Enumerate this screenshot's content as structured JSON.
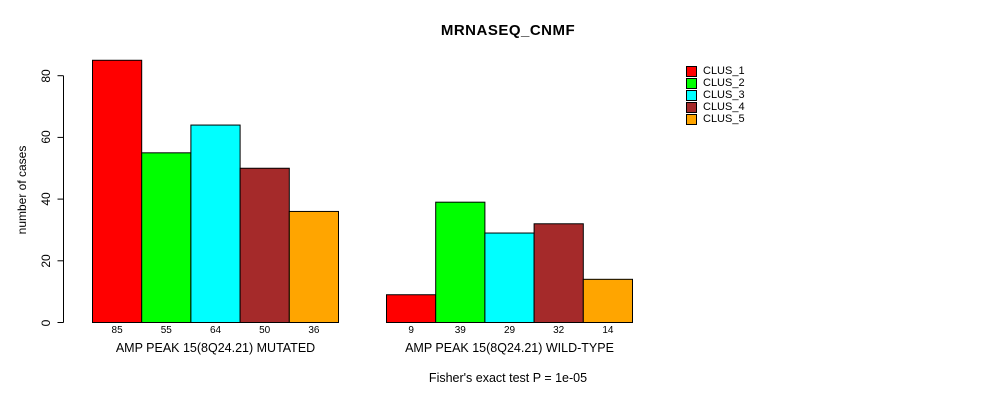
{
  "title": "MRNASEQ_CNMF",
  "ylabel": "number of cases",
  "footer": "Fisher's exact test P = 1e-05",
  "legend": {
    "items": [
      {
        "label": "CLUS_1",
        "color": "#FF0000"
      },
      {
        "label": "CLUS_2",
        "color": "#00FF00"
      },
      {
        "label": "CLUS_3",
        "color": "#00FFFF"
      },
      {
        "label": "CLUS_4",
        "color": "#A52A2A"
      },
      {
        "label": "CLUS_5",
        "color": "#FFA500"
      }
    ]
  },
  "chart_data": {
    "type": "bar",
    "title": "MRNASEQ_CNMF",
    "ylabel": "number of cases",
    "xlabel": "",
    "ylim": [
      0,
      85
    ],
    "yticks": [
      0,
      20,
      40,
      60,
      80
    ],
    "grid": false,
    "legend_position": "right",
    "series_names": [
      "CLUS_1",
      "CLUS_2",
      "CLUS_3",
      "CLUS_4",
      "CLUS_5"
    ],
    "series_colors": [
      "#FF0000",
      "#00FF00",
      "#00FFFF",
      "#A52A2A",
      "#FFA500"
    ],
    "bar_border_color": "#000000",
    "groups": [
      {
        "label": "AMP PEAK 15(8Q24.21) MUTATED",
        "values": [
          85,
          55,
          64,
          50,
          36
        ]
      },
      {
        "label": "AMP PEAK 15(8Q24.21) WILD-TYPE",
        "values": [
          9,
          39,
          29,
          32,
          14
        ]
      }
    ],
    "annotation": "Fisher's exact test P = 1e-05"
  }
}
